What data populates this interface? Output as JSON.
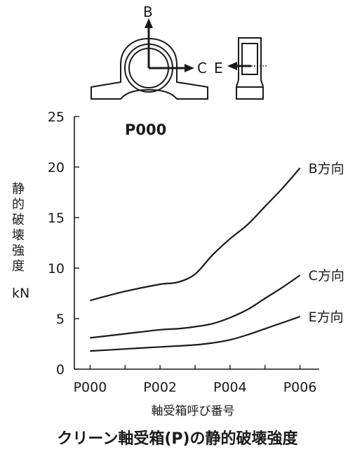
{
  "figure": {
    "direction_labels": {
      "b": "B",
      "c": "C",
      "e": "E"
    },
    "caption": "クリーン軸受箱(P)の静的破壊強度"
  },
  "chart_data": {
    "type": "line",
    "title": "P000",
    "xlabel": "軸受箱呼び番号",
    "ylabel": "静的破壊強度",
    "yunit": "kN",
    "ylim": [
      0,
      25
    ],
    "yticks": [
      0,
      5,
      10,
      15,
      20,
      25
    ],
    "x_tick_labels": [
      "P000",
      "P002",
      "P004",
      "P006"
    ],
    "x_tick_positions": [
      0,
      2,
      4,
      6
    ],
    "xlim": [
      -0.45,
      6.55
    ],
    "series": [
      {
        "name": "B方向",
        "x": [
          0,
          1,
          2,
          2.5,
          3,
          3.5,
          4,
          4.5,
          5,
          5.5,
          6
        ],
        "values": [
          6.8,
          7.7,
          8.4,
          8.6,
          9.4,
          11.3,
          12.9,
          14.3,
          16.1,
          17.9,
          19.9
        ]
      },
      {
        "name": "C方向",
        "x": [
          0,
          1,
          2,
          2.5,
          3,
          3.5,
          4,
          4.5,
          5,
          5.5,
          6
        ],
        "values": [
          3.1,
          3.5,
          3.9,
          4.0,
          4.2,
          4.5,
          5.1,
          5.9,
          7.0,
          8.1,
          9.3
        ]
      },
      {
        "name": "E方向",
        "x": [
          0,
          1,
          2,
          2.5,
          3,
          3.5,
          4,
          4.5,
          5,
          5.5,
          6
        ],
        "values": [
          1.8,
          2.0,
          2.2,
          2.3,
          2.4,
          2.6,
          2.9,
          3.4,
          4.0,
          4.6,
          5.2
        ]
      }
    ]
  }
}
